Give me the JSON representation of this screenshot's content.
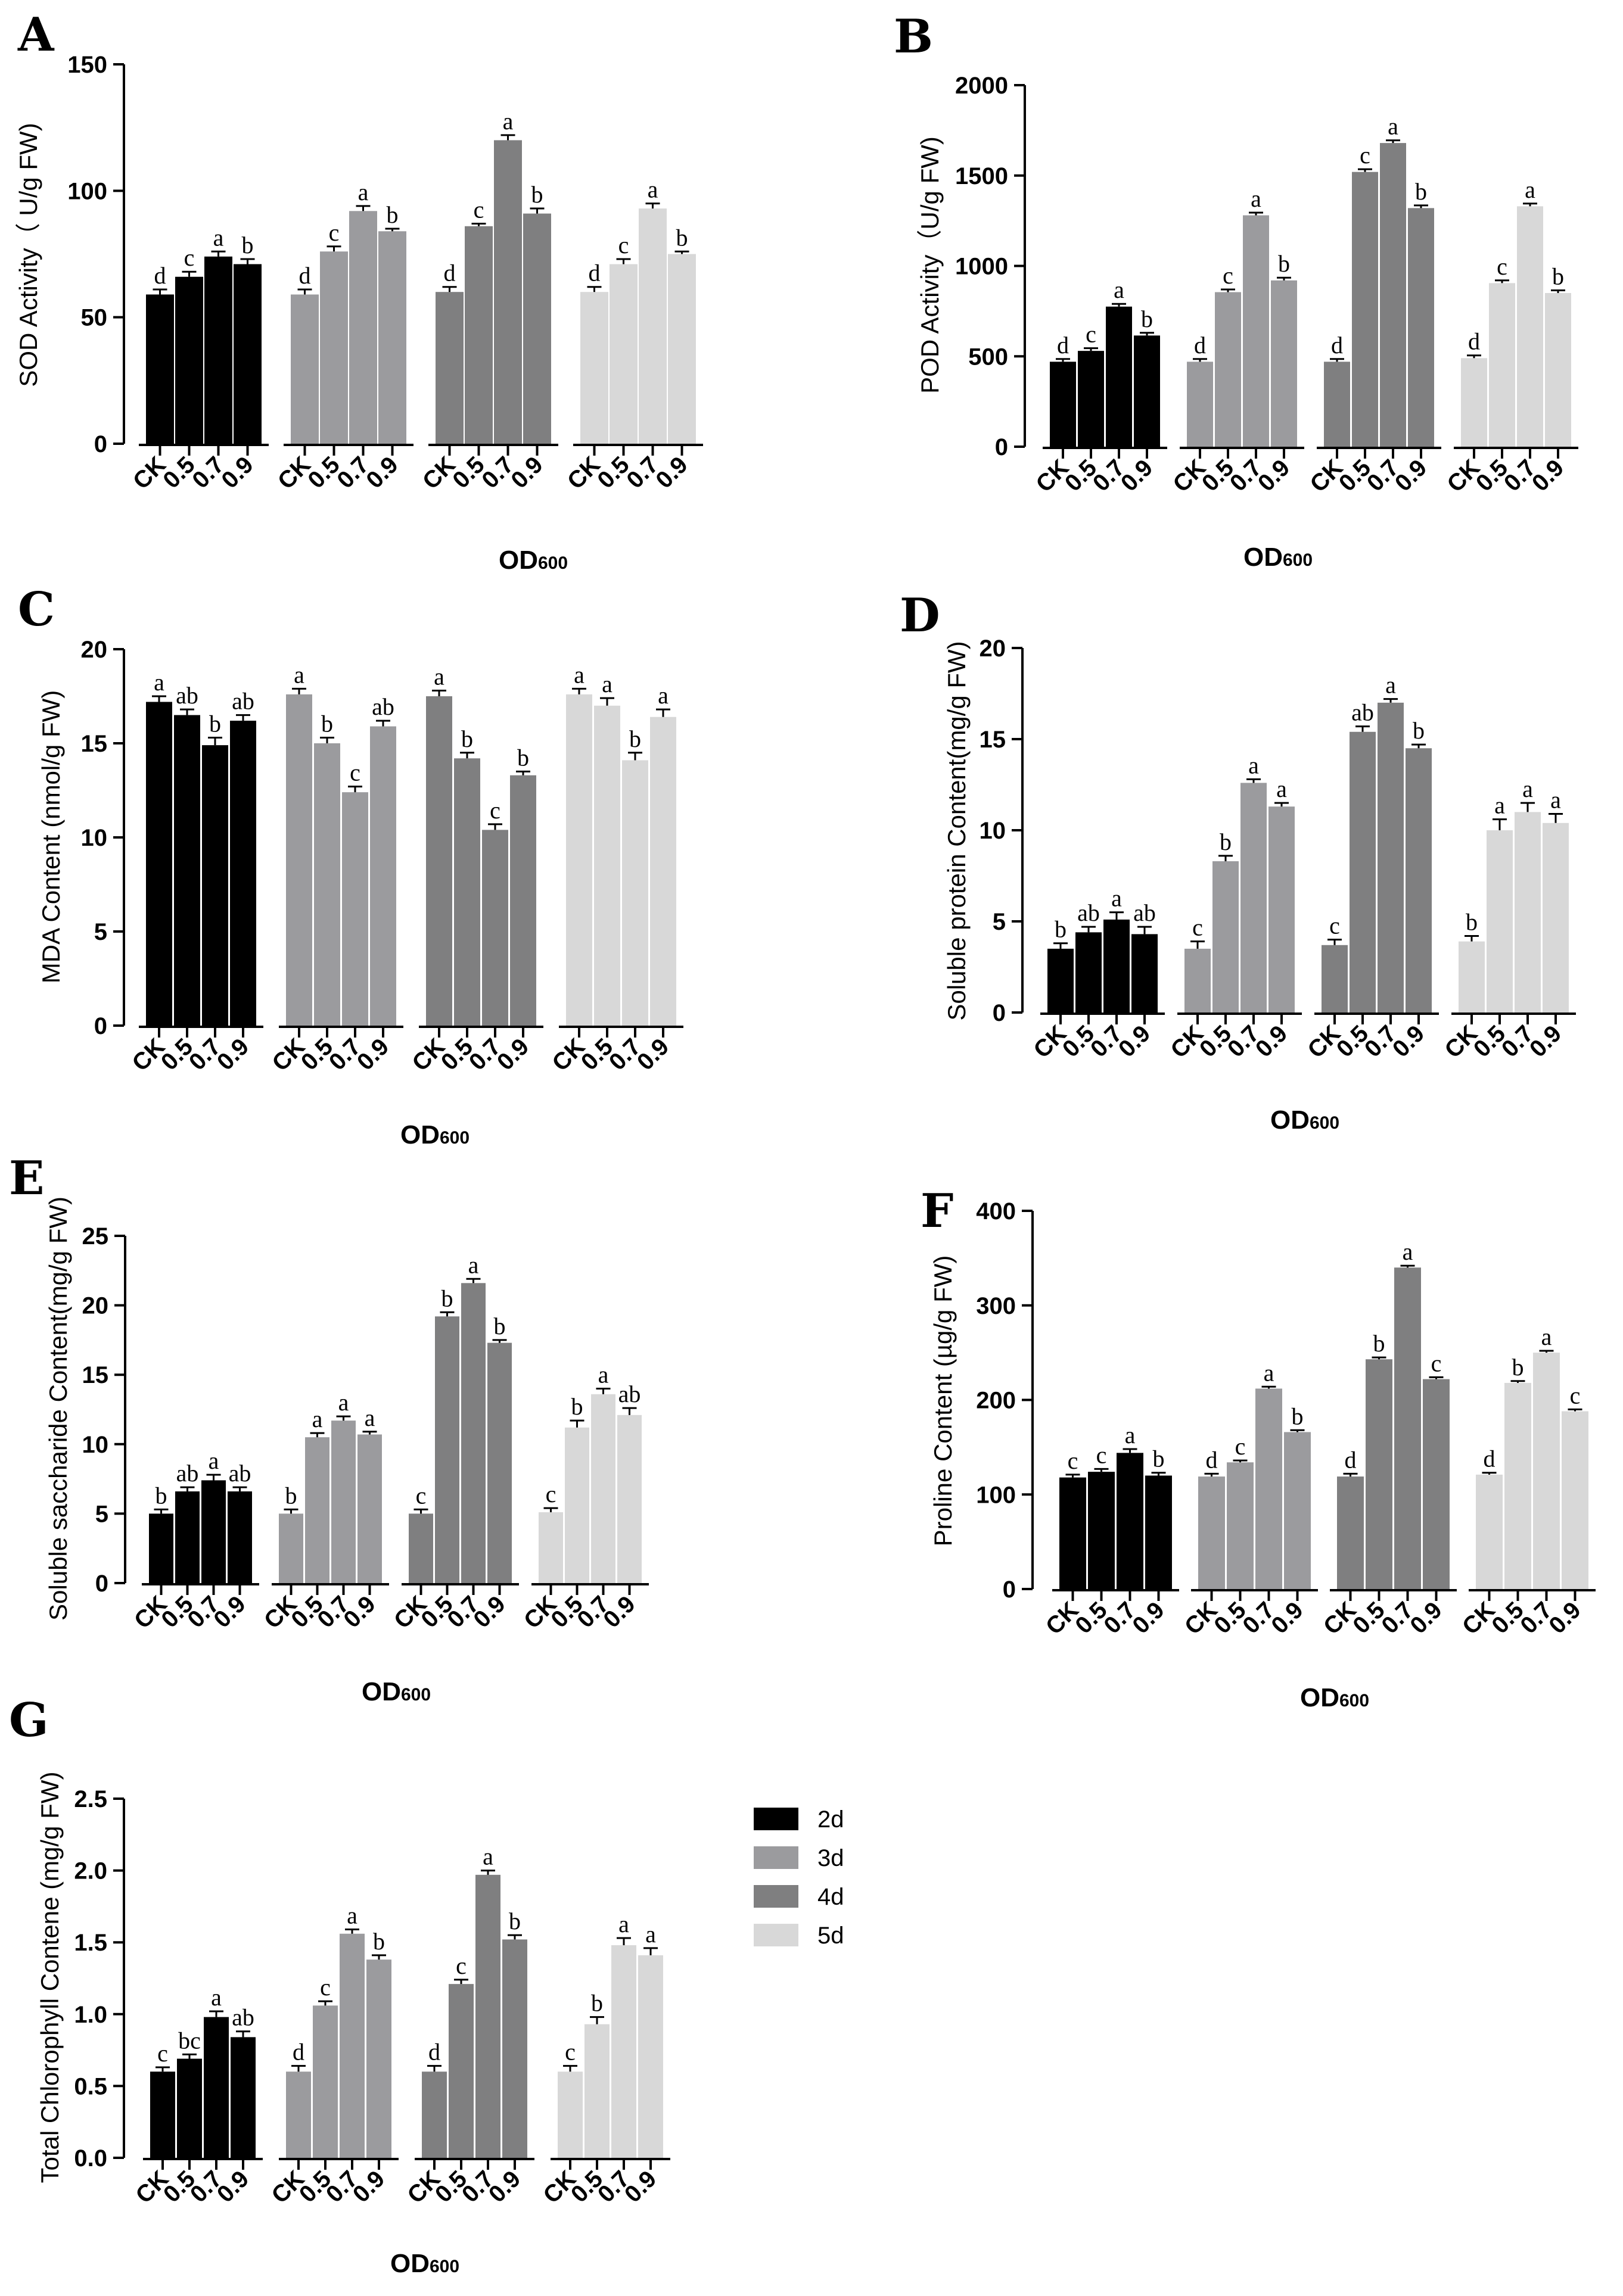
{
  "colors": {
    "2d": "#000000",
    "3d": "#9b9b9e",
    "4d": "#7f7f80",
    "5d": "#d8d8d8"
  },
  "legend": [
    {
      "key": "2d",
      "label": "2d"
    },
    {
      "key": "3d",
      "label": "3d"
    },
    {
      "key": "4d",
      "label": "4d"
    },
    {
      "key": "5d",
      "label": "5d"
    }
  ],
  "chart_data": [
    {
      "panel": "A",
      "type": "bar",
      "ylabel": "SOD Activity（ U/g FW)",
      "xlabel_main": "OD",
      "xlabel_sub": "600",
      "ylim": [
        0,
        150
      ],
      "yticks": [
        0,
        50,
        100,
        150
      ],
      "categories": [
        "CK",
        "0.5",
        "0.7",
        "0.9"
      ],
      "series": [
        {
          "name": "2d",
          "values": [
            59,
            66,
            74,
            71
          ],
          "errors": [
            2,
            2,
            2,
            2
          ],
          "letters": [
            "d",
            "c",
            "a",
            "b"
          ]
        },
        {
          "name": "3d",
          "values": [
            59,
            76,
            92,
            84
          ],
          "errors": [
            2,
            2,
            2,
            1
          ],
          "letters": [
            "d",
            "c",
            "a",
            "b"
          ]
        },
        {
          "name": "4d",
          "values": [
            60,
            86,
            120,
            91
          ],
          "errors": [
            2,
            1,
            2,
            2
          ],
          "letters": [
            "d",
            "c",
            "a",
            "b"
          ]
        },
        {
          "name": "5d",
          "values": [
            60,
            71,
            93,
            75
          ],
          "errors": [
            2,
            2,
            2,
            1
          ],
          "letters": [
            "d",
            "c",
            "a",
            "b"
          ]
        }
      ]
    },
    {
      "panel": "B",
      "type": "bar",
      "ylabel": "POD Activity（U/g FW)",
      "xlabel_main": "OD",
      "xlabel_sub": "600",
      "ylim": [
        0,
        2000
      ],
      "yticks": [
        0,
        500,
        1000,
        1500,
        2000
      ],
      "categories": [
        "CK",
        "0.5",
        "0.7",
        "0.9"
      ],
      "series": [
        {
          "name": "2d",
          "values": [
            470,
            530,
            775,
            615
          ],
          "errors": [
            15,
            15,
            15,
            15
          ],
          "letters": [
            "d",
            "c",
            "a",
            "b"
          ]
        },
        {
          "name": "3d",
          "values": [
            470,
            855,
            1280,
            920
          ],
          "errors": [
            15,
            15,
            15,
            15
          ],
          "letters": [
            "d",
            "c",
            "a",
            "b"
          ]
        },
        {
          "name": "4d",
          "values": [
            470,
            1520,
            1680,
            1320
          ],
          "errors": [
            15,
            15,
            15,
            15
          ],
          "letters": [
            "d",
            "c",
            "a",
            "b"
          ]
        },
        {
          "name": "5d",
          "values": [
            490,
            905,
            1330,
            850
          ],
          "errors": [
            15,
            15,
            15,
            15
          ],
          "letters": [
            "d",
            "c",
            "a",
            "b"
          ]
        }
      ]
    },
    {
      "panel": "C",
      "type": "bar",
      "ylabel": "MDA Content (nmol/g FW)",
      "xlabel_main": "OD",
      "xlabel_sub": "600",
      "ylim": [
        0,
        20
      ],
      "yticks": [
        0,
        5,
        10,
        15,
        20
      ],
      "categories": [
        "CK",
        "0.5",
        "0.7",
        "0.9"
      ],
      "series": [
        {
          "name": "2d",
          "values": [
            17.2,
            16.5,
            14.9,
            16.2
          ],
          "errors": [
            0.3,
            0.3,
            0.4,
            0.3
          ],
          "letters": [
            "a",
            "ab",
            "b",
            "ab"
          ]
        },
        {
          "name": "3d",
          "values": [
            17.6,
            15.0,
            12.4,
            15.9
          ],
          "errors": [
            0.3,
            0.3,
            0.3,
            0.3
          ],
          "letters": [
            "a",
            "b",
            "c",
            "ab"
          ]
        },
        {
          "name": "4d",
          "values": [
            17.5,
            14.2,
            10.4,
            13.3
          ],
          "errors": [
            0.3,
            0.3,
            0.3,
            0.2
          ],
          "letters": [
            "a",
            "b",
            "c",
            "b"
          ]
        },
        {
          "name": "5d",
          "values": [
            17.6,
            17.0,
            14.1,
            16.4
          ],
          "errors": [
            0.3,
            0.4,
            0.4,
            0.4
          ],
          "letters": [
            "a",
            "a",
            "b",
            "a"
          ]
        }
      ]
    },
    {
      "panel": "D",
      "type": "bar",
      "ylabel": "Soluble protein Content(mg/g FW)",
      "xlabel_main": "OD",
      "xlabel_sub": "600",
      "ylim": [
        0,
        20
      ],
      "yticks": [
        0,
        5,
        10,
        15,
        20
      ],
      "categories": [
        "CK",
        "0.5",
        "0.7",
        "0.9"
      ],
      "series": [
        {
          "name": "2d",
          "values": [
            3.5,
            4.4,
            5.1,
            4.3
          ],
          "errors": [
            0.3,
            0.3,
            0.4,
            0.4
          ],
          "letters": [
            "b",
            "ab",
            "a",
            "ab"
          ]
        },
        {
          "name": "3d",
          "values": [
            3.5,
            8.3,
            12.6,
            11.3
          ],
          "errors": [
            0.4,
            0.3,
            0.2,
            0.2
          ],
          "letters": [
            "c",
            "b",
            "a",
            "a"
          ]
        },
        {
          "name": "4d",
          "values": [
            3.7,
            15.4,
            17.0,
            14.5
          ],
          "errors": [
            0.3,
            0.3,
            0.2,
            0.2
          ],
          "letters": [
            "c",
            "ab",
            "a",
            "b"
          ]
        },
        {
          "name": "5d",
          "values": [
            3.9,
            10.0,
            11.0,
            10.4
          ],
          "errors": [
            0.3,
            0.6,
            0.5,
            0.5
          ],
          "letters": [
            "b",
            "a",
            "a",
            "a"
          ]
        }
      ]
    },
    {
      "panel": "E",
      "type": "bar",
      "ylabel": "Soluble saccharide Content(mg/g FW)",
      "xlabel_main": "OD",
      "xlabel_sub": "600",
      "ylim": [
        0,
        25
      ],
      "yticks": [
        0,
        5,
        10,
        15,
        20,
        25
      ],
      "categories": [
        "CK",
        "0.5",
        "0.7",
        "0.9"
      ],
      "series": [
        {
          "name": "2d",
          "values": [
            5.0,
            6.6,
            7.4,
            6.6
          ],
          "errors": [
            0.3,
            0.3,
            0.4,
            0.3
          ],
          "letters": [
            "b",
            "ab",
            "a",
            "ab"
          ]
        },
        {
          "name": "3d",
          "values": [
            5.0,
            10.5,
            11.7,
            10.7
          ],
          "errors": [
            0.3,
            0.3,
            0.3,
            0.2
          ],
          "letters": [
            "b",
            "a",
            "a",
            "a"
          ]
        },
        {
          "name": "4d",
          "values": [
            5.0,
            19.2,
            21.6,
            17.3
          ],
          "errors": [
            0.3,
            0.3,
            0.3,
            0.2
          ],
          "letters": [
            "c",
            "b",
            "a",
            "b"
          ]
        },
        {
          "name": "5d",
          "values": [
            5.1,
            11.2,
            13.6,
            12.1
          ],
          "errors": [
            0.3,
            0.5,
            0.4,
            0.5
          ],
          "letters": [
            "c",
            "b",
            "a",
            "ab"
          ]
        }
      ]
    },
    {
      "panel": "F",
      "type": "bar",
      "ylabel": "Proline Content (µg/g FW)",
      "xlabel_main": "OD",
      "xlabel_sub": "600",
      "ylim": [
        0,
        400
      ],
      "yticks": [
        0,
        100,
        200,
        300,
        400
      ],
      "categories": [
        "CK",
        "0.5",
        "0.7",
        "0.9"
      ],
      "series": [
        {
          "name": "2d",
          "values": [
            118,
            124,
            144,
            120
          ],
          "errors": [
            3,
            3,
            4,
            3
          ],
          "letters": [
            "c",
            "c",
            "a",
            "b"
          ]
        },
        {
          "name": "3d",
          "values": [
            119,
            134,
            212,
            166
          ],
          "errors": [
            3,
            2,
            2,
            2
          ],
          "letters": [
            "d",
            "c",
            "a",
            "b"
          ]
        },
        {
          "name": "4d",
          "values": [
            119,
            243,
            340,
            222
          ],
          "errors": [
            3,
            2,
            2,
            2
          ],
          "letters": [
            "d",
            "b",
            "a",
            "c"
          ]
        },
        {
          "name": "5d",
          "values": [
            121,
            218,
            250,
            188
          ],
          "errors": [
            2,
            2,
            2,
            2
          ],
          "letters": [
            "d",
            "b",
            "a",
            "c"
          ]
        }
      ]
    },
    {
      "panel": "G",
      "type": "bar",
      "ylabel": "Total Chlorophyll Contene (mg/g FW)",
      "xlabel_main": "OD",
      "xlabel_sub": "600",
      "ylim": [
        0,
        2.5
      ],
      "yticks": [
        "0.0",
        "0.5",
        "1.0",
        "1.5",
        "2.0",
        "2.5"
      ],
      "categories": [
        "CK",
        "0.5",
        "0.7",
        "0.9"
      ],
      "series": [
        {
          "name": "2d",
          "values": [
            0.6,
            0.69,
            0.98,
            0.84
          ],
          "errors": [
            0.03,
            0.03,
            0.04,
            0.04
          ],
          "letters": [
            "c",
            "bc",
            "a",
            "ab"
          ]
        },
        {
          "name": "3d",
          "values": [
            0.6,
            1.06,
            1.56,
            1.38
          ],
          "errors": [
            0.04,
            0.03,
            0.03,
            0.03
          ],
          "letters": [
            "d",
            "c",
            "a",
            "b"
          ]
        },
        {
          "name": "4d",
          "values": [
            0.6,
            1.21,
            1.97,
            1.52
          ],
          "errors": [
            0.04,
            0.03,
            0.03,
            0.03
          ],
          "letters": [
            "d",
            "c",
            "a",
            "b"
          ]
        },
        {
          "name": "5d",
          "values": [
            0.6,
            0.93,
            1.48,
            1.41
          ],
          "errors": [
            0.04,
            0.05,
            0.05,
            0.05
          ],
          "letters": [
            "c",
            "b",
            "a",
            "a"
          ]
        }
      ]
    }
  ]
}
